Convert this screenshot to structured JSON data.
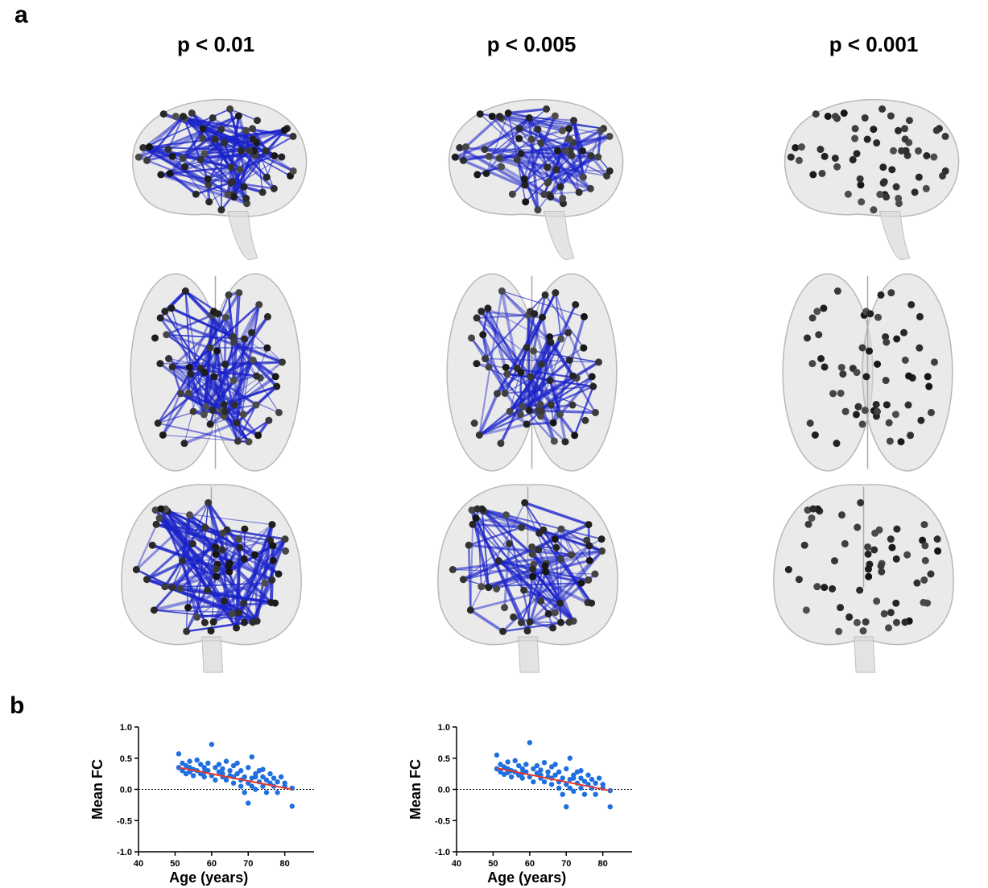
{
  "panel_a": {
    "letter": "a",
    "columns": [
      {
        "title": "p < 0.01",
        "edges": 130,
        "edge_opacity": 0.85
      },
      {
        "title": "p < 0.005",
        "edges": 95,
        "edge_opacity": 0.8
      },
      {
        "title": "p < 0.001",
        "edges": 0,
        "edge_opacity": 0.0
      }
    ],
    "views": [
      "sagittal",
      "axial",
      "coronal"
    ],
    "colors": {
      "edge": "#1a22c8",
      "node": "#1c1c1c",
      "brain": "#d9d9d9"
    }
  },
  "panel_b": {
    "letter": "b"
  },
  "chart_data": [
    {
      "type": "scatter",
      "xlabel": "Age (years)",
      "ylabel": "Mean FC",
      "xlim": [
        40,
        88
      ],
      "ylim": [
        -1.0,
        1.0
      ],
      "xticks": [
        "40",
        "50",
        "60",
        "70",
        "80"
      ],
      "yticks": [
        "1.0",
        "0.5",
        "0.0",
        "-0.5",
        "-1.0"
      ],
      "marker_color": "#1f6fe0",
      "fit_color": "#e53a2a",
      "fit_line": {
        "x": [
          51,
          82
        ],
        "y": [
          0.35,
          0.0
        ]
      },
      "reference_line_y": 0.0,
      "points": [
        [
          51,
          0.57
        ],
        [
          51,
          0.35
        ],
        [
          52,
          0.3
        ],
        [
          52,
          0.42
        ],
        [
          53,
          0.25
        ],
        [
          53,
          0.38
        ],
        [
          54,
          0.28
        ],
        [
          54,
          0.45
        ],
        [
          55,
          0.32
        ],
        [
          55,
          0.22
        ],
        [
          56,
          0.47
        ],
        [
          56,
          0.3
        ],
        [
          57,
          0.4
        ],
        [
          57,
          0.25
        ],
        [
          58,
          0.35
        ],
        [
          58,
          0.2
        ],
        [
          59,
          0.3
        ],
        [
          59,
          0.42
        ],
        [
          60,
          0.72
        ],
        [
          60,
          0.22
        ],
        [
          61,
          0.35
        ],
        [
          61,
          0.15
        ],
        [
          62,
          0.28
        ],
        [
          62,
          0.4
        ],
        [
          63,
          0.2
        ],
        [
          63,
          0.33
        ],
        [
          64,
          0.45
        ],
        [
          64,
          0.15
        ],
        [
          65,
          0.3
        ],
        [
          65,
          0.22
        ],
        [
          66,
          0.38
        ],
        [
          66,
          0.1
        ],
        [
          67,
          0.25
        ],
        [
          67,
          0.42
        ],
        [
          68,
          0.15
        ],
        [
          68,
          0.3
        ],
        [
          69,
          -0.05
        ],
        [
          69,
          0.2
        ],
        [
          70,
          -0.22
        ],
        [
          70,
          0.1
        ],
        [
          70,
          0.35
        ],
        [
          71,
          0.52
        ],
        [
          71,
          0.05
        ],
        [
          71,
          0.18
        ],
        [
          72,
          0.25
        ],
        [
          72,
          0.0
        ],
        [
          73,
          0.12
        ],
        [
          73,
          0.3
        ],
        [
          74,
          0.05
        ],
        [
          74,
          0.2
        ],
        [
          75,
          0.15
        ],
        [
          75,
          -0.05
        ],
        [
          76,
          0.25
        ],
        [
          76,
          0.1
        ],
        [
          77,
          0.05
        ],
        [
          77,
          0.18
        ],
        [
          78,
          -0.05
        ],
        [
          78,
          0.12
        ],
        [
          79,
          0.2
        ],
        [
          80,
          0.05
        ],
        [
          80,
          0.1
        ],
        [
          82,
          0.02
        ],
        [
          82,
          -0.27
        ],
        [
          68,
          0.05
        ],
        [
          66,
          0.2
        ],
        [
          63,
          0.25
        ],
        [
          58,
          0.28
        ],
        [
          54,
          0.35
        ],
        [
          72,
          0.2
        ],
        [
          74,
          0.32
        ]
      ]
    },
    {
      "type": "scatter",
      "xlabel": "Age (years)",
      "ylabel": "Mean FC",
      "xlim": [
        40,
        88
      ],
      "ylim": [
        -1.0,
        1.0
      ],
      "xticks": [
        "40",
        "50",
        "60",
        "70",
        "80"
      ],
      "yticks": [
        "1.0",
        "0.5",
        "0.0",
        "-0.5",
        "-1.0"
      ],
      "marker_color": "#1f6fe0",
      "fit_color": "#e53a2a",
      "fit_line": {
        "x": [
          51,
          82
        ],
        "y": [
          0.34,
          -0.02
        ]
      },
      "reference_line_y": 0.0,
      "points": [
        [
          51,
          0.55
        ],
        [
          51,
          0.33
        ],
        [
          52,
          0.28
        ],
        [
          52,
          0.4
        ],
        [
          53,
          0.24
        ],
        [
          53,
          0.36
        ],
        [
          54,
          0.27
        ],
        [
          54,
          0.44
        ],
        [
          55,
          0.3
        ],
        [
          55,
          0.2
        ],
        [
          56,
          0.46
        ],
        [
          56,
          0.28
        ],
        [
          57,
          0.38
        ],
        [
          57,
          0.23
        ],
        [
          58,
          0.33
        ],
        [
          58,
          0.18
        ],
        [
          59,
          0.28
        ],
        [
          59,
          0.4
        ],
        [
          60,
          0.75
        ],
        [
          60,
          0.2
        ],
        [
          61,
          0.33
        ],
        [
          61,
          0.12
        ],
        [
          62,
          0.26
        ],
        [
          62,
          0.38
        ],
        [
          63,
          0.18
        ],
        [
          63,
          0.31
        ],
        [
          64,
          0.43
        ],
        [
          64,
          0.12
        ],
        [
          65,
          0.28
        ],
        [
          65,
          0.2
        ],
        [
          66,
          0.36
        ],
        [
          66,
          0.08
        ],
        [
          67,
          0.23
        ],
        [
          67,
          0.4
        ],
        [
          68,
          0.12
        ],
        [
          68,
          0.28
        ],
        [
          69,
          -0.08
        ],
        [
          69,
          0.18
        ],
        [
          70,
          -0.28
        ],
        [
          70,
          0.08
        ],
        [
          70,
          0.33
        ],
        [
          71,
          0.5
        ],
        [
          71,
          0.02
        ],
        [
          71,
          0.16
        ],
        [
          72,
          0.23
        ],
        [
          72,
          -0.03
        ],
        [
          73,
          0.1
        ],
        [
          73,
          0.28
        ],
        [
          74,
          0.02
        ],
        [
          74,
          0.18
        ],
        [
          75,
          0.13
        ],
        [
          75,
          -0.08
        ],
        [
          76,
          0.23
        ],
        [
          76,
          0.08
        ],
        [
          77,
          0.02
        ],
        [
          77,
          0.16
        ],
        [
          78,
          -0.08
        ],
        [
          78,
          0.1
        ],
        [
          79,
          0.18
        ],
        [
          80,
          0.02
        ],
        [
          80,
          0.08
        ],
        [
          82,
          -0.02
        ],
        [
          82,
          -0.28
        ],
        [
          68,
          0.02
        ],
        [
          66,
          0.18
        ],
        [
          63,
          0.23
        ],
        [
          58,
          0.26
        ],
        [
          54,
          0.33
        ],
        [
          72,
          0.18
        ],
        [
          74,
          0.3
        ]
      ]
    }
  ]
}
